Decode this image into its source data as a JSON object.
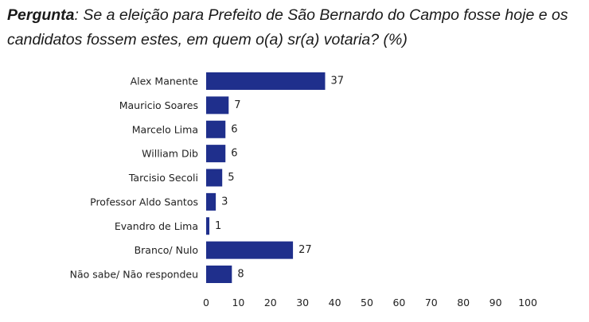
{
  "question": {
    "lead": "Pergunta",
    "text": ": Se a eleição para Prefeito de São Bernardo do Campo fosse hoje e os candidatos fossem estes, em quem o(a) sr(a) votaria? (%)"
  },
  "chart_data": {
    "type": "bar",
    "orientation": "horizontal",
    "categories": [
      "Alex Manente",
      "Mauricio Soares",
      "Marcelo Lima",
      "William Dib",
      "Tarcisio Secoli",
      "Professor Aldo Santos",
      "Evandro de Lima",
      "Branco/ Nulo",
      "Não sabe/ Não respondeu"
    ],
    "values": [
      37,
      7,
      6,
      6,
      5,
      3,
      1,
      27,
      8
    ],
    "xlim": [
      0,
      100
    ],
    "xticks": [
      0,
      10,
      20,
      30,
      40,
      50,
      60,
      70,
      80,
      90,
      100
    ],
    "grid": false,
    "bar_color": "#1f2f8c"
  }
}
